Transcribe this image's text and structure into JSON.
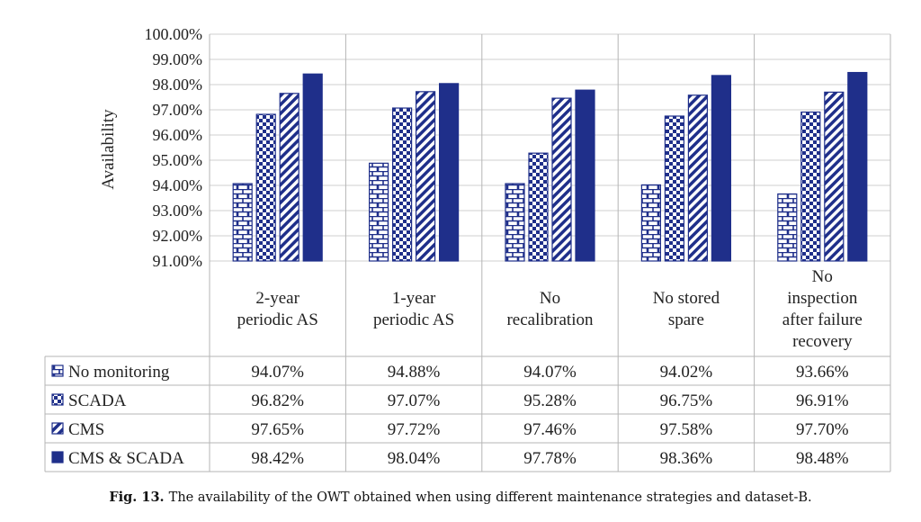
{
  "chart_data": {
    "type": "bar",
    "ylabel": "Availability",
    "ylim": [
      91,
      100
    ],
    "ytick_labels": [
      "91.00%",
      "92.00%",
      "93.00%",
      "94.00%",
      "95.00%",
      "96.00%",
      "97.00%",
      "98.00%",
      "99.00%",
      "100.00%"
    ],
    "categories": [
      [
        "2-year",
        "periodic AS"
      ],
      [
        "1-year",
        "periodic AS"
      ],
      [
        "No",
        "recalibration"
      ],
      [
        "No stored",
        "spare"
      ],
      [
        "No",
        "inspection",
        "after failure",
        "recovery"
      ]
    ],
    "series": [
      {
        "name": "No monitoring",
        "pattern": "brick",
        "values": [
          94.07,
          94.88,
          94.07,
          94.02,
          93.66
        ],
        "labels": [
          "94.07%",
          "94.88%",
          "94.07%",
          "94.02%",
          "93.66%"
        ]
      },
      {
        "name": "SCADA",
        "pattern": "checker",
        "values": [
          96.82,
          97.07,
          95.28,
          96.75,
          96.91
        ],
        "labels": [
          "96.82%",
          "97.07%",
          "95.28%",
          "96.75%",
          "96.91%"
        ]
      },
      {
        "name": "CMS",
        "pattern": "diagonal",
        "values": [
          97.65,
          97.72,
          97.46,
          97.58,
          97.7
        ],
        "labels": [
          "97.65%",
          "97.72%",
          "97.46%",
          "97.58%",
          "97.70%"
        ]
      },
      {
        "name": "CMS & SCADA",
        "pattern": "solid",
        "values": [
          98.42,
          98.04,
          97.78,
          98.36,
          98.48
        ],
        "labels": [
          "98.42%",
          "98.04%",
          "97.78%",
          "98.36%",
          "98.48%"
        ]
      }
    ],
    "grid": true,
    "legend": "data-table",
    "colors": {
      "bar": "#1f2f8a",
      "grid": "#cfcfcf",
      "table_border": "#b5b5b5"
    }
  },
  "caption": {
    "label": "Fig. 13.",
    "text": "The availability of the OWT obtained when using different maintenance strategies and dataset-B."
  }
}
